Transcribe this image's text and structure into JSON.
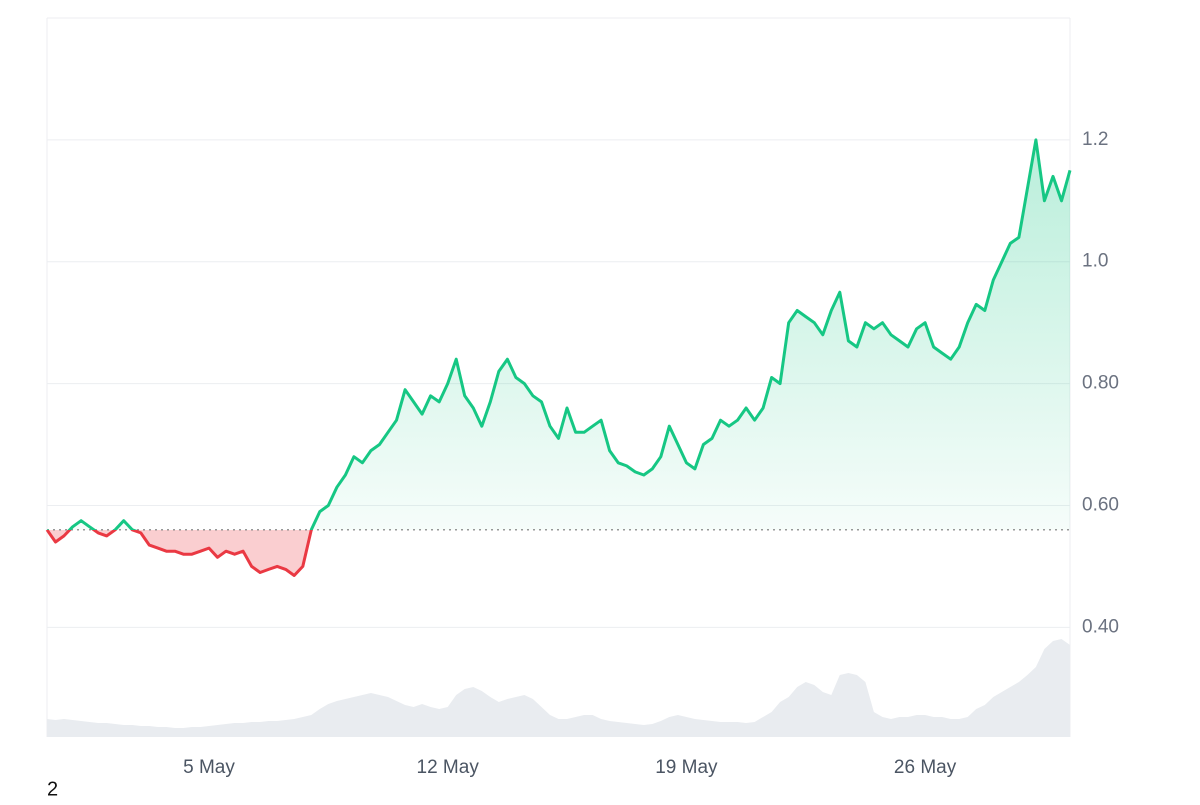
{
  "chart_data": {
    "type": "line",
    "footnote": "2",
    "baseline": 0.56,
    "colors": {
      "up": "#16c784",
      "down": "#ea3943",
      "volume": "#e9ecf0"
    },
    "categories": [
      null,
      null,
      null,
      null,
      null,
      null,
      null,
      null,
      null,
      null,
      null,
      null,
      null,
      null,
      null,
      null,
      null,
      null,
      null,
      "5 May",
      null,
      null,
      null,
      null,
      null,
      null,
      null,
      null,
      null,
      null,
      null,
      null,
      null,
      null,
      null,
      null,
      null,
      null,
      null,
      null,
      null,
      null,
      null,
      null,
      null,
      null,
      null,
      "12 May",
      null,
      null,
      null,
      null,
      null,
      null,
      null,
      null,
      null,
      null,
      null,
      null,
      null,
      null,
      null,
      null,
      null,
      null,
      null,
      null,
      null,
      null,
      null,
      null,
      null,
      null,
      null,
      "19 May",
      null,
      null,
      null,
      null,
      null,
      null,
      null,
      null,
      null,
      null,
      null,
      null,
      null,
      null,
      null,
      null,
      null,
      null,
      null,
      null,
      null,
      null,
      null,
      null,
      null,
      null,
      null,
      "26 May",
      null,
      null,
      null,
      null,
      null,
      null,
      null,
      null,
      null,
      null,
      null,
      null,
      null,
      null,
      null,
      null,
      null
    ],
    "series": [
      {
        "name": "Price",
        "values": [
          0.56,
          0.54,
          0.55,
          0.565,
          0.575,
          0.565,
          0.555,
          0.55,
          0.56,
          0.575,
          0.56,
          0.555,
          0.535,
          0.53,
          0.525,
          0.525,
          0.52,
          0.52,
          0.525,
          0.53,
          0.515,
          0.525,
          0.52,
          0.525,
          0.5,
          0.49,
          0.495,
          0.5,
          0.495,
          0.485,
          0.5,
          0.56,
          0.59,
          0.6,
          0.63,
          0.65,
          0.68,
          0.67,
          0.69,
          0.7,
          0.72,
          0.74,
          0.79,
          0.77,
          0.75,
          0.78,
          0.77,
          0.8,
          0.84,
          0.78,
          0.76,
          0.73,
          0.77,
          0.82,
          0.84,
          0.81,
          0.8,
          0.78,
          0.77,
          0.73,
          0.71,
          0.76,
          0.72,
          0.72,
          0.73,
          0.74,
          0.69,
          0.67,
          0.665,
          0.655,
          0.65,
          0.66,
          0.68,
          0.73,
          0.7,
          0.67,
          0.66,
          0.7,
          0.71,
          0.74,
          0.73,
          0.74,
          0.76,
          0.74,
          0.76,
          0.81,
          0.8,
          0.9,
          0.92,
          0.91,
          0.9,
          0.88,
          0.92,
          0.95,
          0.87,
          0.86,
          0.9,
          0.89,
          0.9,
          0.88,
          0.87,
          0.86,
          0.89,
          0.9,
          0.86,
          0.85,
          0.84,
          0.86,
          0.9,
          0.93,
          0.92,
          0.97,
          1.0,
          1.03,
          1.04,
          1.12,
          1.2,
          1.1,
          1.14,
          1.1,
          1.15
        ]
      },
      {
        "name": "Volume",
        "values": [
          18,
          17,
          18,
          17,
          16,
          15,
          14,
          14,
          13,
          12,
          12,
          11,
          11,
          10,
          10,
          9,
          9,
          10,
          10,
          11,
          12,
          13,
          14,
          14,
          15,
          15,
          16,
          16,
          17,
          18,
          20,
          22,
          28,
          33,
          36,
          38,
          40,
          42,
          44,
          42,
          40,
          36,
          32,
          30,
          33,
          30,
          28,
          30,
          42,
          48,
          50,
          46,
          40,
          35,
          38,
          40,
          42,
          38,
          30,
          22,
          18,
          18,
          20,
          22,
          22,
          18,
          16,
          15,
          14,
          13,
          12,
          13,
          16,
          20,
          22,
          20,
          18,
          17,
          16,
          15,
          15,
          15,
          14,
          15,
          20,
          25,
          35,
          40,
          50,
          55,
          52,
          45,
          42,
          62,
          64,
          62,
          55,
          25,
          20,
          18,
          20,
          20,
          22,
          22,
          20,
          20,
          18,
          18,
          20,
          28,
          32,
          40,
          45,
          50,
          55,
          62,
          70,
          88,
          96,
          98,
          92
        ]
      }
    ],
    "ylim": [
      0.22,
      1.4
    ],
    "yticks": [
      {
        "value": 0.4,
        "label": "0.40"
      },
      {
        "value": 0.6,
        "label": "0.60"
      },
      {
        "value": 0.8,
        "label": "0.80"
      },
      {
        "value": 1.0,
        "label": "1.0"
      },
      1.2
    ],
    "vlim": [
      0,
      100
    ],
    "grid": true
  }
}
